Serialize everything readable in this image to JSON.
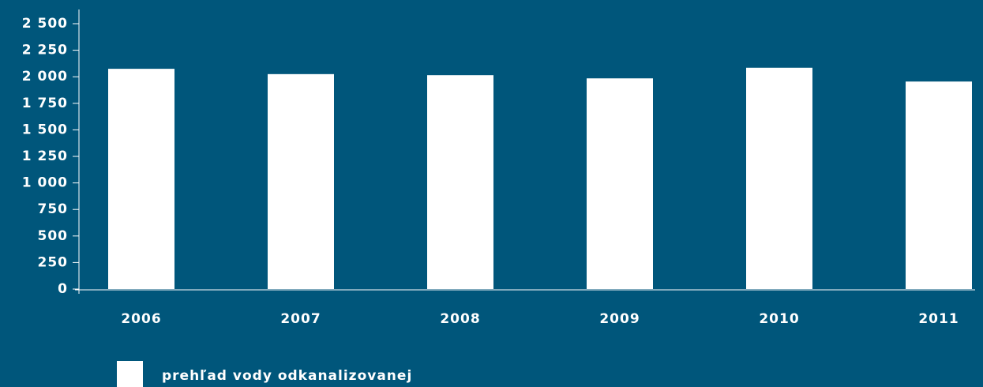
{
  "chart_data": {
    "type": "bar",
    "categories": [
      "2006",
      "2007",
      "2008",
      "2009",
      "2010",
      "2011"
    ],
    "series": [
      {
        "name": "prehľad vody odkanalizovanej",
        "color": "#ffffff",
        "values": [
          2075,
          2025,
          2015,
          1985,
          2085,
          1955
        ]
      }
    ],
    "ylim": [
      0,
      2500
    ],
    "yticks": [
      0,
      250,
      500,
      750,
      {
        "value": 1000,
        "label": "1 000"
      },
      {
        "value": 1250,
        "label": "1 250"
      },
      {
        "value": 1500,
        "label": "1 500"
      },
      {
        "value": 1750,
        "label": "1 750"
      },
      {
        "value": 2000,
        "label": "2 000"
      },
      {
        "value": 2250,
        "label": "2 250"
      },
      {
        "value": 2500,
        "label": "2 500"
      }
    ],
    "grid": false,
    "legend": "bottom-left"
  }
}
